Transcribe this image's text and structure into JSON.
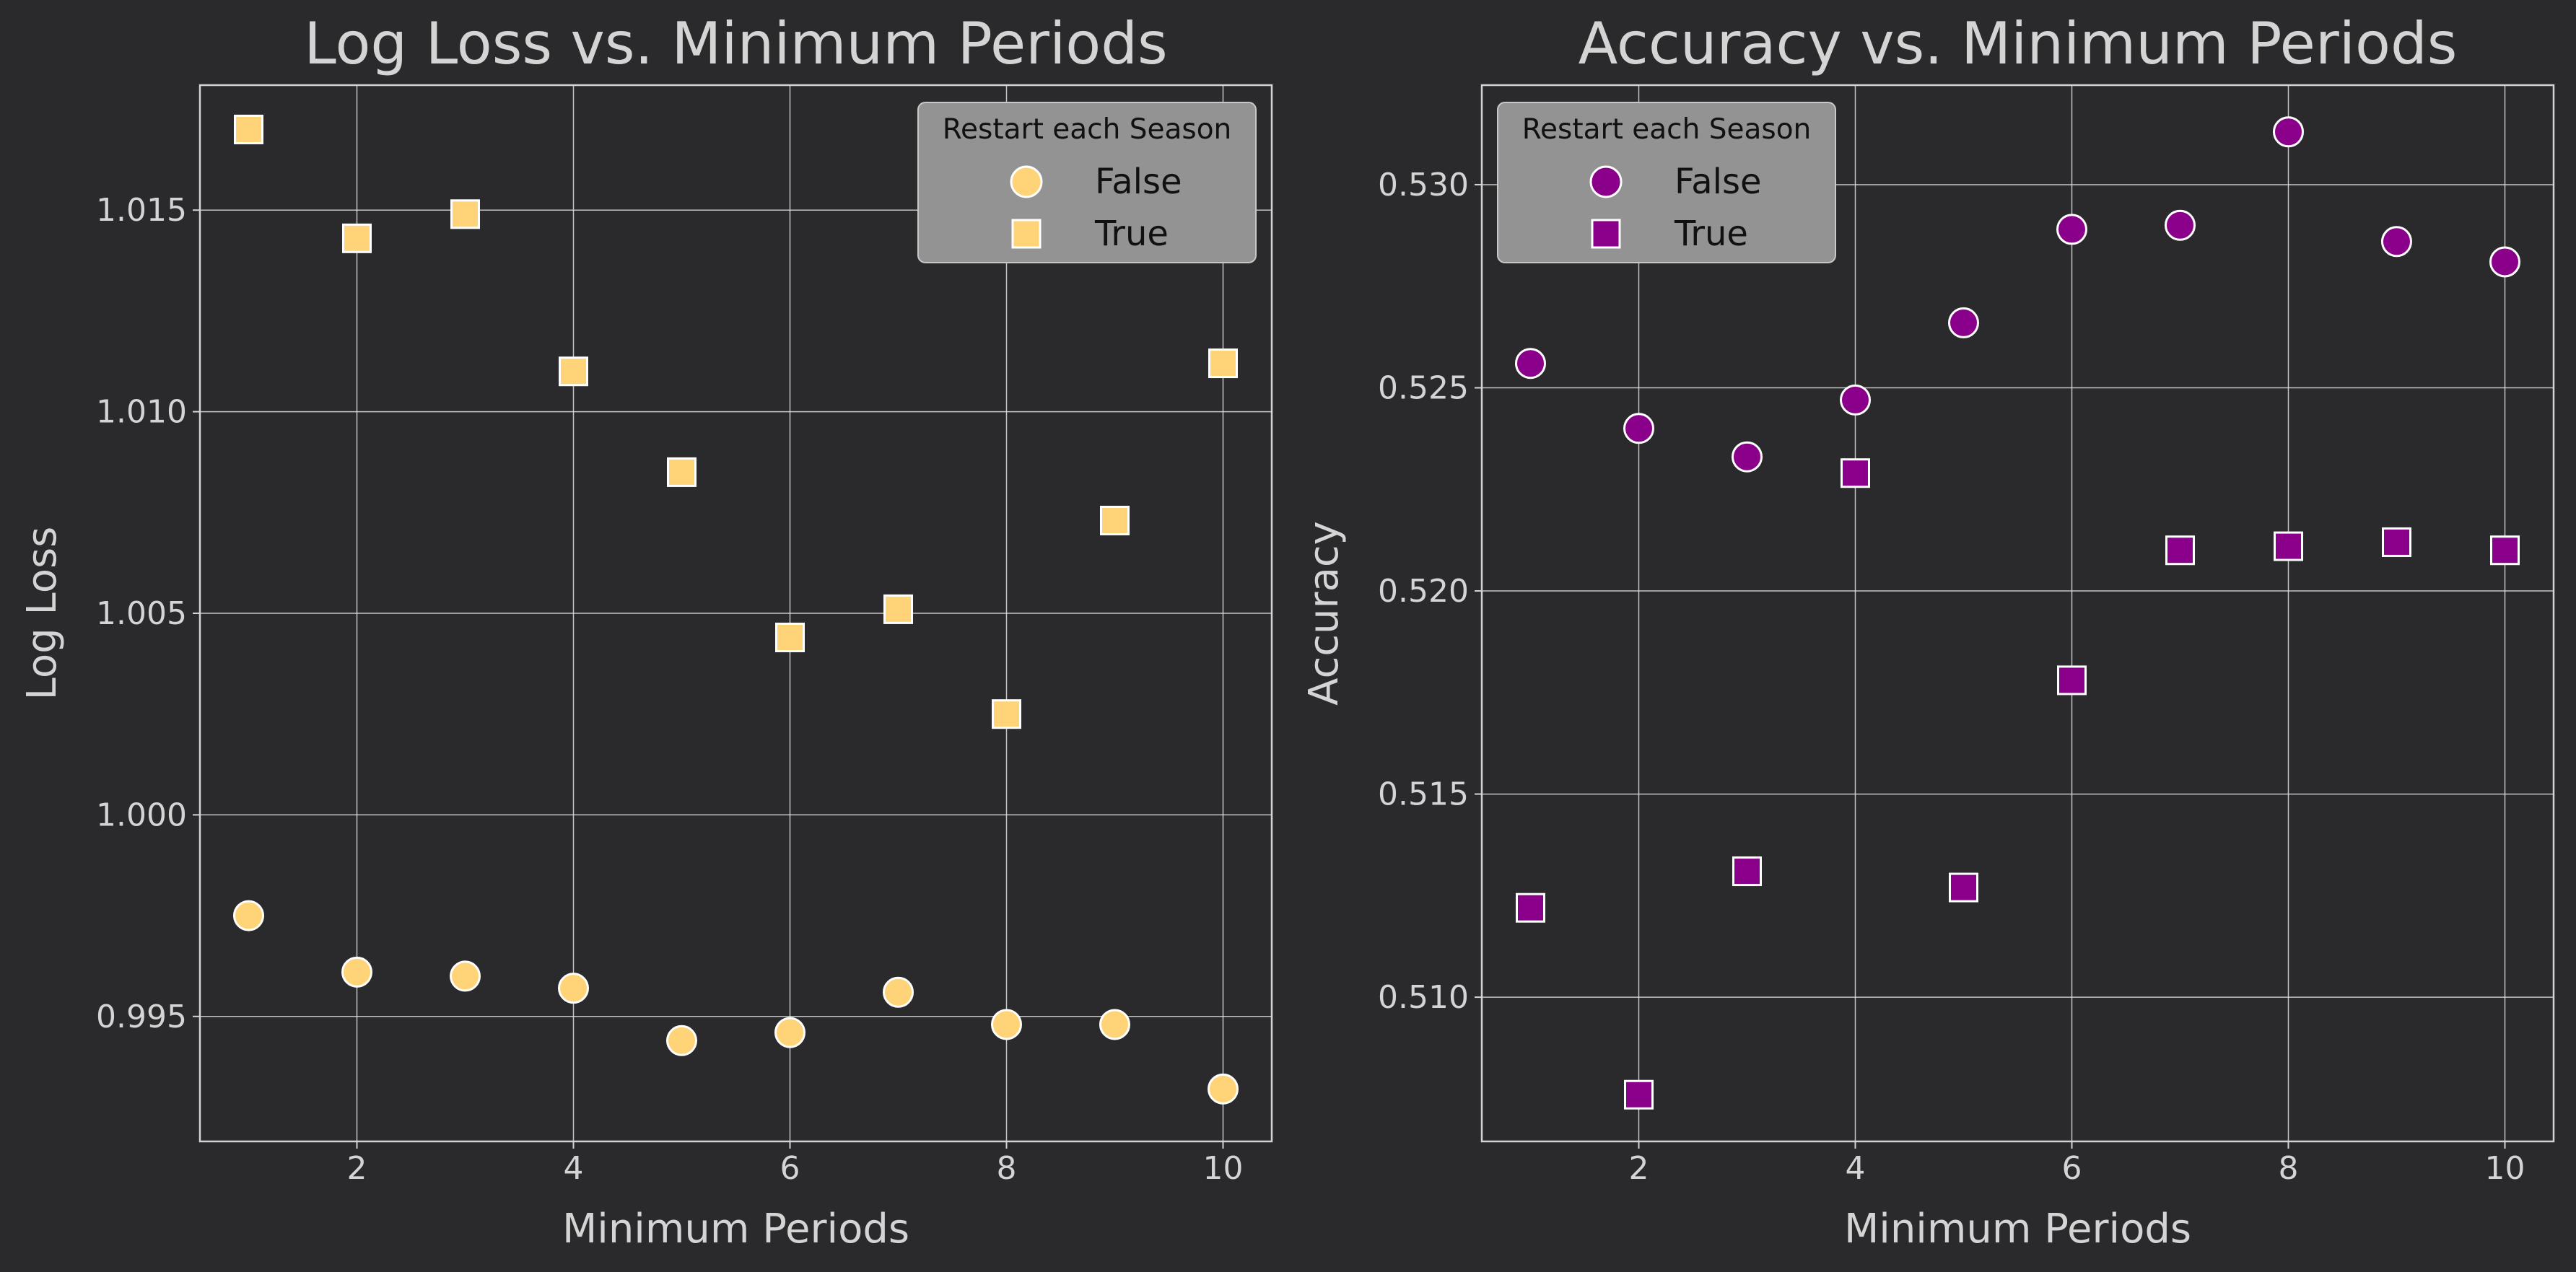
{
  "figure": {
    "background": "#2a2a2c",
    "axes_color": "#d4d4d4",
    "text_color": "#d4d4d4"
  },
  "chart_data": [
    {
      "type": "scatter",
      "title": "Log Loss vs. Minimum Periods",
      "xlabel": "Minimum Periods",
      "ylabel": "Log Loss",
      "xlim": [
        0.55,
        10.45
      ],
      "ylim": [
        0.9919,
        1.0181
      ],
      "xticks": [
        2,
        4,
        6,
        8,
        10
      ],
      "xtick_labels": [
        "2",
        "4",
        "6",
        "8",
        "10"
      ],
      "yticks": [
        0.995,
        1.0,
        1.005,
        1.01,
        1.015
      ],
      "ytick_labels": [
        "0.995",
        "1.000",
        "1.005",
        "1.010",
        "1.015"
      ],
      "grid": true,
      "color": "#ffd479",
      "legend": {
        "title": "Restart each Season",
        "placement": "top-right"
      },
      "series": [
        {
          "name": "False",
          "marker": "circle",
          "x": [
            1,
            2,
            3,
            4,
            5,
            6,
            7,
            8,
            9,
            10
          ],
          "y": [
            0.9975,
            0.9961,
            0.996,
            0.9957,
            0.9944,
            0.9946,
            0.9956,
            0.9948,
            0.9948,
            0.9932
          ]
        },
        {
          "name": "True",
          "marker": "square",
          "x": [
            1,
            2,
            3,
            4,
            5,
            6,
            7,
            8,
            9,
            10
          ],
          "y": [
            1.017,
            1.0143,
            1.0149,
            1.011,
            1.0085,
            1.0044,
            1.0051,
            1.0025,
            1.0073,
            1.0112
          ]
        }
      ]
    },
    {
      "type": "scatter",
      "title": "Accuracy vs. Minimum Periods",
      "xlabel": "Minimum Periods",
      "ylabel": "Accuracy",
      "xlim": [
        0.55,
        10.45
      ],
      "ylim": [
        0.50645,
        0.53245
      ],
      "xticks": [
        2,
        4,
        6,
        8,
        10
      ],
      "xtick_labels": [
        "2",
        "4",
        "6",
        "8",
        "10"
      ],
      "yticks": [
        0.51,
        0.515,
        0.52,
        0.525,
        0.53
      ],
      "ytick_labels": [
        "0.510",
        "0.515",
        "0.520",
        "0.525",
        "0.530"
      ],
      "grid": true,
      "color": "#8b008b",
      "legend": {
        "title": "Restart each Season",
        "placement": "top-left"
      },
      "series": [
        {
          "name": "False",
          "marker": "circle",
          "x": [
            1,
            2,
            3,
            4,
            5,
            6,
            7,
            8,
            9,
            10
          ],
          "y": [
            0.5256,
            0.524,
            0.5233,
            0.5247,
            0.5266,
            0.5289,
            0.529,
            0.5313,
            0.5286,
            0.5281
          ]
        },
        {
          "name": "True",
          "marker": "square",
          "x": [
            1,
            2,
            3,
            4,
            5,
            6,
            7,
            8,
            9,
            10
          ],
          "y": [
            0.5122,
            0.5076,
            0.5131,
            0.5229,
            0.5127,
            0.5178,
            0.521,
            0.5211,
            0.5212,
            0.521
          ]
        }
      ]
    }
  ]
}
